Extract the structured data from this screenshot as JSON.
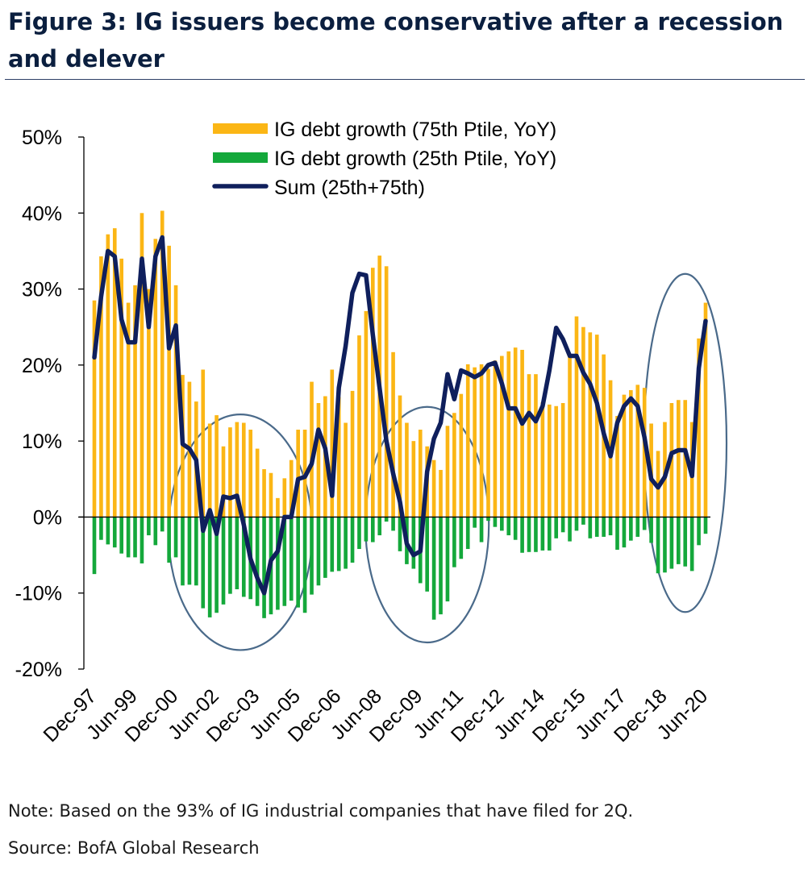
{
  "title": "Figure 3: IG issuers become conservative after a recession and delever",
  "note": "Note: Based on the 93% of IG industrial companies that have filed for 2Q.",
  "source": "Source: BofA Global Research",
  "colors": {
    "p75": "#fbb615",
    "p25": "#14a83b",
    "sum": "#0f1f5c",
    "ellipse": "#4a6a8a",
    "title": "#0b1f3f"
  },
  "chart_data": {
    "type": "bar",
    "ylim": [
      -20,
      50
    ],
    "yticks": [
      "50%",
      "40%",
      "30%",
      "20%",
      "10%",
      "0%",
      "-10%",
      "-20%"
    ],
    "xtick_labels": [
      "Dec-97",
      "Jun-99",
      "Dec-00",
      "Jun-02",
      "Dec-03",
      "Jun-05",
      "Dec-06",
      "Jun-08",
      "Dec-09",
      "Jun-11",
      "Dec-12",
      "Jun-14",
      "Dec-15",
      "Jun-17",
      "Dec-18",
      "Jun-20"
    ],
    "frequency": "quarterly",
    "legend_position": "top-center",
    "series": [
      {
        "name": "IG debt growth (75th Ptile, YoY)",
        "kind": "bar",
        "values": [
          28.5,
          34.3,
          37.2,
          38,
          34,
          28.2,
          30.5,
          40,
          30,
          36.6,
          40.3,
          35.7,
          30.5,
          18.7,
          17.8,
          15.2,
          19.4,
          12.3,
          13.4,
          9.3,
          11.8,
          12.5,
          12.4,
          11.5,
          9,
          6.3,
          5.8,
          2.5,
          5.1,
          7.5,
          11.5,
          11.5,
          17.8,
          15,
          15.9,
          19.4,
          15.8,
          12.4,
          16.6,
          23.9,
          27.1,
          32.8,
          34.4,
          33,
          21.7,
          16,
          12.4,
          10,
          11.5,
          9.3,
          7.5,
          6.2,
          12,
          13.7,
          16.2,
          20.1,
          19.7,
          20.1,
          19.5,
          20.6,
          21.2,
          21.8,
          22.3,
          22,
          18.8,
          18.8,
          15.1,
          14.8,
          14.6,
          15,
          21.3,
          26.4,
          25,
          24.3,
          24,
          21.4,
          18,
          13.3,
          16.1,
          16.7,
          17.4,
          17,
          12.3,
          8.7,
          12.5,
          15,
          15.4,
          15.4,
          12.5,
          23.5,
          28.2
        ]
      },
      {
        "name": "IG debt growth (25th Ptile, YoY)",
        "kind": "bar",
        "values": [
          -7.5,
          -3,
          -3.6,
          -4,
          -4.8,
          -5.3,
          -5.3,
          -6.1,
          -2.4,
          -3.7,
          -1.9,
          -6,
          -5.3,
          -9,
          -8.9,
          -9,
          -12,
          -13.2,
          -12.6,
          -11.5,
          -10.1,
          -9.5,
          -10.5,
          -10.8,
          -11.7,
          -13.3,
          -12.8,
          -12.2,
          -11.7,
          -11,
          -11.9,
          -12.6,
          -10.2,
          -9,
          -8,
          -7.2,
          -7.1,
          -6.8,
          -6,
          -4.2,
          -3.2,
          -3.3,
          -2.4,
          -0.6,
          -1.8,
          -4.5,
          -6.2,
          -6.8,
          -8.7,
          -9.8,
          -13.5,
          -12.8,
          -11.1,
          -6.6,
          -5.5,
          -4.2,
          -1.4,
          -3.3,
          -0.5,
          -1.3,
          -1.8,
          -2.4,
          -3,
          -4.7,
          -4.6,
          -4.6,
          -4.4,
          -4.4,
          -2.8,
          -2,
          -3.2,
          -1.8,
          -1,
          -2.8,
          -2.6,
          -2.6,
          -2.4,
          -4.3,
          -4,
          -3.1,
          -2.6,
          -1.7,
          -3.4,
          -7.4,
          -7.3,
          -6.8,
          -6.2,
          -6.5,
          -7.1,
          -3.7,
          -2.2
        ]
      },
      {
        "name": "Sum (25th+75th)",
        "kind": "line",
        "values": [
          21,
          29,
          35,
          34.3,
          26,
          23,
          23,
          34,
          25,
          34.3,
          36.8,
          22.2,
          25.2,
          9.6,
          9,
          7.5,
          -1.8,
          0.9,
          -2.2,
          2.7,
          2.5,
          2.8,
          -1,
          -5.5,
          -8,
          -10,
          -5.7,
          -4.5,
          0,
          0,
          5,
          5.3,
          7,
          11.5,
          9,
          2.8,
          17,
          22.5,
          29.5,
          32,
          31.8,
          24,
          17,
          10,
          5.7,
          2,
          -3.5,
          -5,
          -4.5,
          6,
          10.3,
          12.4,
          18.8,
          15.5,
          19.3,
          18.9,
          18.4,
          18.9,
          20,
          20.3,
          17.6,
          14.3,
          14.3,
          12.3,
          13.7,
          12.6,
          14.6,
          19.3,
          24.9,
          23.4,
          21.2,
          21.2,
          19,
          17.5,
          15,
          11,
          8,
          12.4,
          14.6,
          15.6,
          14.6,
          10.5,
          5,
          3.9,
          5.3,
          8.4,
          8.8,
          8.8,
          5.4,
          19.6,
          25.8
        ]
      }
    ]
  }
}
